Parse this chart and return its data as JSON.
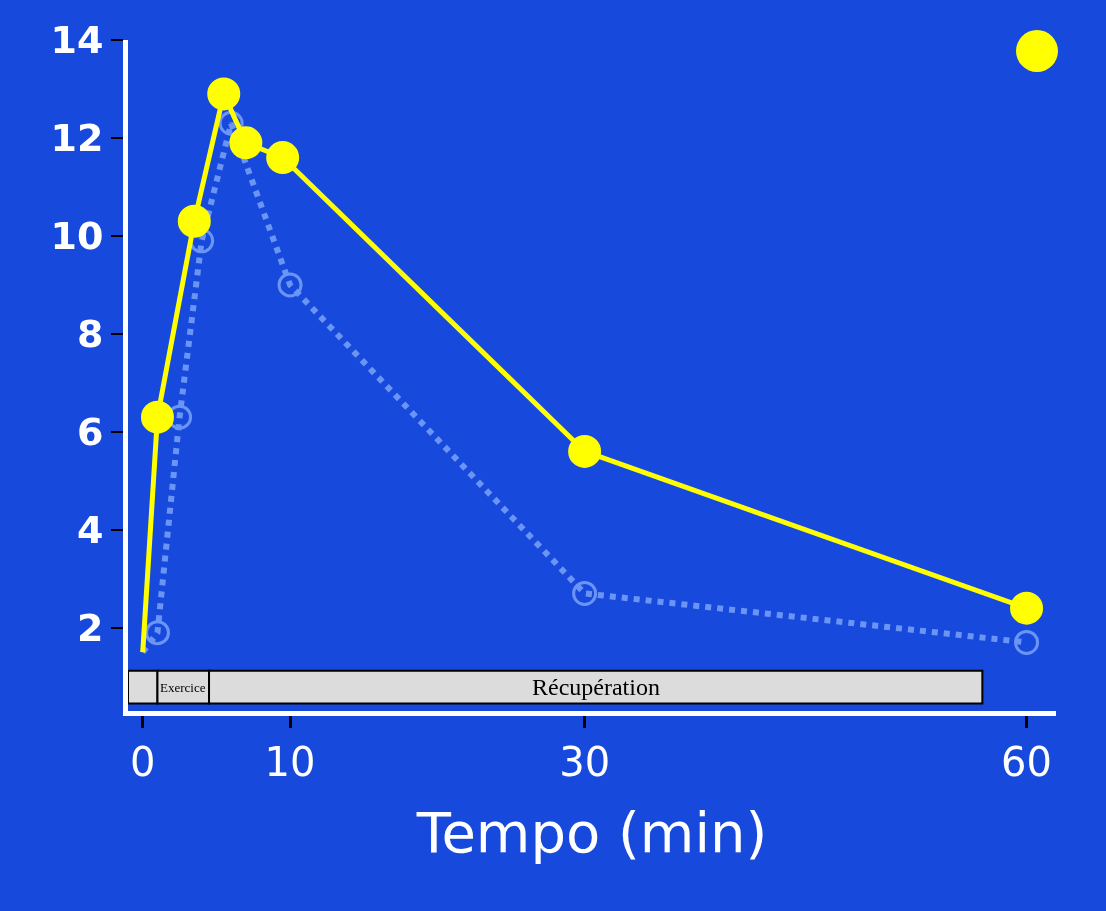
{
  "chart_data": {
    "type": "line",
    "xlabel": "Tempo (min)",
    "series": [
      {
        "color": "#6b95f5",
        "marker": "circle",
        "line_style": "dotted",
        "x": [
          0,
          1,
          2.5,
          4,
          6,
          10,
          30,
          60
        ],
        "values": [
          1.5,
          1.9,
          6.3,
          9.9,
          12.3,
          9.0,
          2.7,
          1.7
        ]
      },
      {
        "color": "#ffff00",
        "marker": "circle",
        "line_style": "solid",
        "x": [
          0,
          1,
          3.5,
          5.5,
          7,
          9.5,
          30,
          60
        ],
        "values": [
          1.5,
          6.3,
          10.3,
          12.9,
          11.9,
          11.6,
          5.6,
          2.4
        ]
      }
    ],
    "xlim": [
      -1,
      62
    ],
    "xticks": [
      0,
      10,
      30,
      60
    ],
    "ylim": [
      0.3,
      14
    ],
    "yticks": [
      2,
      4,
      6,
      8,
      10,
      12,
      14
    ],
    "bands": [
      {
        "axis": "x",
        "from": -1,
        "to": 1,
        "label": null,
        "color": "#dcdcdc"
      },
      {
        "axis": "x",
        "from": 1,
        "to": 4.5,
        "label": "Exercice",
        "color": "#dcdcdc"
      },
      {
        "axis": "x",
        "from": 4.5,
        "to": 57,
        "label": "Récupération",
        "color": "#dcdcdc"
      }
    ],
    "grid": false
  }
}
